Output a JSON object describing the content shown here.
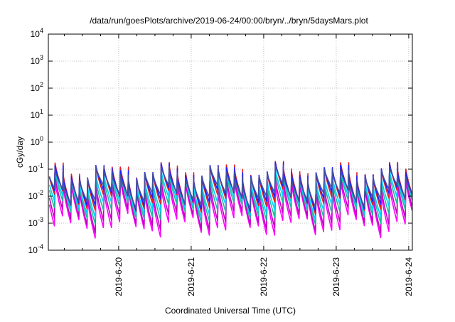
{
  "chart_data": {
    "type": "line",
    "title": "/data/run/goesPlots/archive/2019-06-24/00:00/bryn/../bryn/5daysMars.plot",
    "xlabel": "Coordinated Universal Time (UTC)",
    "ylabel": "cGy/day",
    "yscale": "log",
    "grid": true,
    "ylim_exp": [
      -4,
      4
    ],
    "y_ticks": [
      {
        "base": "10",
        "exp": "4",
        "value": 10000
      },
      {
        "base": "10",
        "exp": "3",
        "value": 1000
      },
      {
        "base": "10",
        "exp": "2",
        "value": 100
      },
      {
        "base": "10",
        "exp": "1",
        "value": 10
      },
      {
        "base": "10",
        "exp": "0",
        "value": 1
      },
      {
        "base": "10",
        "exp": "-1",
        "value": 0.1
      },
      {
        "base": "10",
        "exp": "-2",
        "value": 0.01
      },
      {
        "base": "10",
        "exp": "-3",
        "value": 0.001
      },
      {
        "base": "10",
        "exp": "-4",
        "value": 0.0001
      }
    ],
    "xlim_days": [
      19.03,
      24.05
    ],
    "x_ticks": [
      {
        "label": "2019-6-20",
        "day": 20
      },
      {
        "label": "2019-6-21",
        "day": 21
      },
      {
        "label": "2019-6-22",
        "day": 22
      },
      {
        "label": "2019-6-23",
        "day": 23
      },
      {
        "label": "2019-6-24",
        "day": 24
      }
    ],
    "cycle_hours": 2.7,
    "series": [
      {
        "color": "#ff00ff",
        "peak_log": -1.75,
        "trough_log": -3.1
      },
      {
        "color": "#c000c0",
        "peak_log": -1.6,
        "trough_log": -2.9
      },
      {
        "color": "#1abc9c",
        "peak_log": -1.45,
        "trough_log": -2.6
      },
      {
        "color": "#00d0ff",
        "peak_log": -1.35,
        "trough_log": -2.4
      },
      {
        "color": "#e02020",
        "peak_log": -1.1,
        "trough_log": -2.2
      },
      {
        "color": "#2020ff",
        "peak_log": -1.15,
        "trough_log": -2.1
      },
      {
        "color": "#4050a0",
        "peak_log": -1.25,
        "trough_log": -2.0
      }
    ]
  }
}
